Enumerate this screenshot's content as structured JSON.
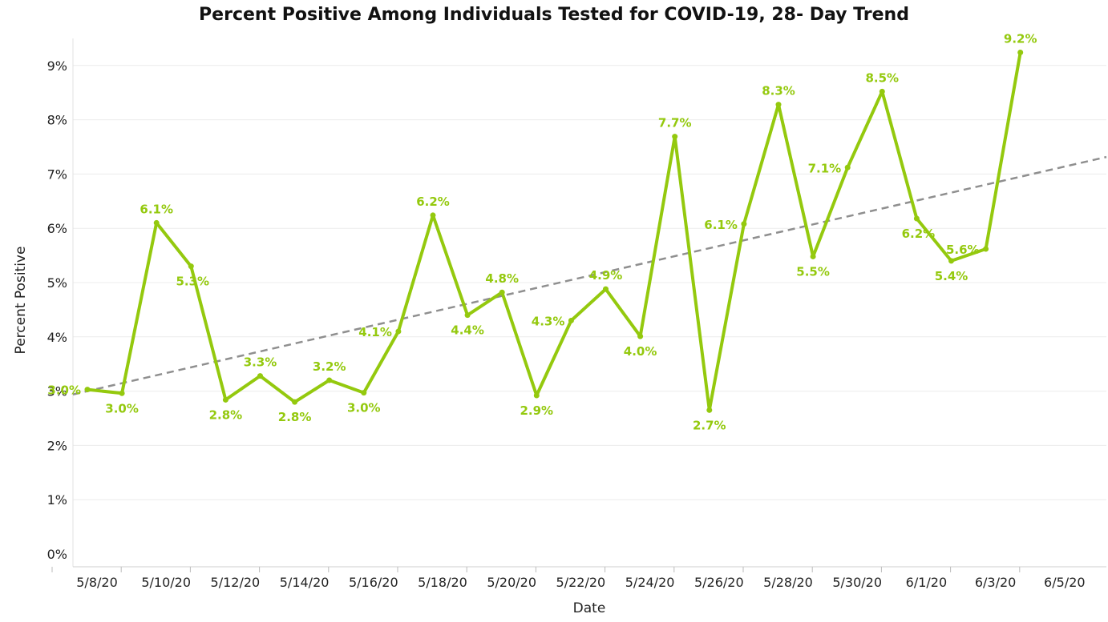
{
  "chart_data": {
    "type": "line",
    "title": "Percent Positive Among Individuals Tested for COVID-19, 28- Day Trend",
    "xlabel": "Date",
    "ylabel": "Percent Positive",
    "ylim": [
      0,
      9.8
    ],
    "yticks": [
      "0%",
      "1%",
      "2%",
      "3%",
      "4%",
      "5%",
      "6%",
      "7%",
      "8%",
      "9%"
    ],
    "xticks": [
      {
        "day": 0,
        "label": "5/8/20"
      },
      {
        "day": 2,
        "label": "5/10/20"
      },
      {
        "day": 4,
        "label": "5/12/20"
      },
      {
        "day": 6,
        "label": "5/14/20"
      },
      {
        "day": 8,
        "label": "5/16/20"
      },
      {
        "day": 10,
        "label": "5/18/20"
      },
      {
        "day": 12,
        "label": "5/20/20"
      },
      {
        "day": 14,
        "label": "5/22/20"
      },
      {
        "day": 16,
        "label": "5/24/20"
      },
      {
        "day": 18,
        "label": "5/26/20"
      },
      {
        "day": 20,
        "label": "5/28/20"
      },
      {
        "day": 22,
        "label": "5/30/20"
      },
      {
        "day": 24,
        "label": "6/1/20"
      },
      {
        "day": 26,
        "label": "6/3/20"
      },
      {
        "day": 28,
        "label": "6/5/20"
      }
    ],
    "grid": true,
    "line_color": "#94c90e",
    "trend_color": "#8f8f8f",
    "trend": {
      "start": 3.0,
      "end": 6.95
    },
    "series": [
      {
        "values": [
          3.03,
          2.96,
          6.1,
          5.3,
          2.84,
          3.28,
          2.8,
          3.2,
          2.97,
          4.1,
          6.24,
          4.4,
          4.82,
          2.92,
          4.3,
          4.88,
          4.01,
          7.69,
          2.65,
          6.08,
          8.28,
          5.48,
          7.12,
          8.52,
          6.18,
          5.4,
          5.62,
          9.24
        ],
        "labels": [
          "3.0%",
          "3.0%",
          "6.1%",
          "5.3%",
          "2.8%",
          "3.3%",
          "2.8%",
          "3.2%",
          "3.0%",
          "4.1%",
          "6.2%",
          "4.4%",
          "4.8%",
          "2.9%",
          "4.3%",
          "4.9%",
          "4.0%",
          "7.7%",
          "2.7%",
          "6.1%",
          "8.3%",
          "5.5%",
          "7.1%",
          "8.5%",
          "6.2%",
          "5.4%",
          "5.6%",
          "9.2%"
        ]
      }
    ]
  }
}
